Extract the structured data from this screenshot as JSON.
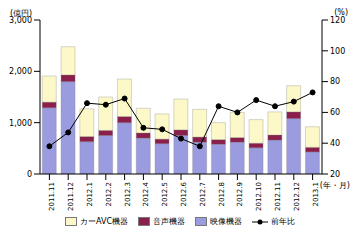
{
  "chart_data": {
    "type": "bar",
    "stacked": true,
    "grid": false,
    "legend": "bottom",
    "y_label": "(億円)",
    "y2_label": "(%)",
    "x_label": "(年・月)",
    "categories": [
      "2011.11",
      "2011.12",
      "2012.1",
      "2012.2",
      "2012.3",
      "2012.4",
      "2012.5",
      "2012.6",
      "2012.7",
      "2012.8",
      "2012.9",
      "2012.10",
      "2012.11",
      "2012.12",
      "2013.1"
    ],
    "ylim": [
      0,
      3000
    ],
    "yticks": [
      0,
      {
        "value": 1000,
        "label": "1,000"
      },
      {
        "value": 2000,
        "label": "2,000"
      },
      {
        "value": 3000,
        "label": "3,000"
      }
    ],
    "y2lim": [
      20,
      120
    ],
    "y2ticks": [
      20,
      40,
      60,
      80,
      100,
      120
    ],
    "series": [
      {
        "name": "カーAVC機器",
        "type": "bar",
        "color": "#fdf8c8",
        "values": [
          510,
          550,
          540,
          650,
          730,
          480,
          490,
          600,
          540,
          330,
          490,
          460,
          450,
          510,
          400
        ]
      },
      {
        "name": "音声機器",
        "type": "bar",
        "color": "#8b1f4c",
        "values": [
          110,
          130,
          100,
          100,
          120,
          100,
          90,
          110,
          100,
          90,
          90,
          90,
          100,
          130,
          90
        ]
      },
      {
        "name": "映像機器",
        "type": "bar",
        "color": "#9b9be0",
        "values": [
          1290,
          1800,
          630,
          750,
          1000,
          700,
          590,
          750,
          620,
          580,
          620,
          510,
          660,
          1080,
          430
        ]
      },
      {
        "name": "前年比",
        "type": "line",
        "axis": "y2",
        "color": "#000000",
        "marker": "circle",
        "values": [
          38,
          47,
          66,
          65,
          69,
          50,
          49,
          43,
          38,
          64,
          60,
          68,
          64,
          67,
          73
        ]
      }
    ]
  }
}
